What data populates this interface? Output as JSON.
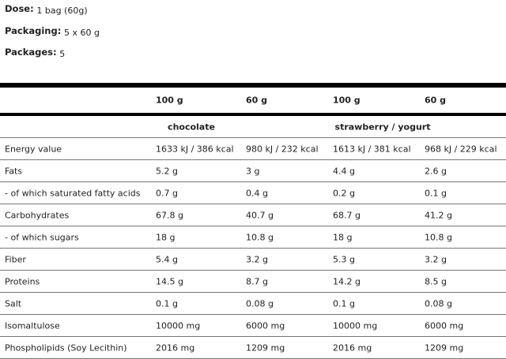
{
  "meta": [
    {
      "label": "Dose:",
      "value": "1 bag (60g)"
    },
    {
      "label": "Packaging:",
      "value": "5 x 60 g"
    },
    {
      "label": "Packages:",
      "value": "5"
    }
  ],
  "table": {
    "headers": [
      "",
      "100 g",
      "60 g",
      "100 g",
      "60 g"
    ],
    "flavors": [
      "chocolate",
      "strawberry / yogurt"
    ],
    "rows": [
      [
        "Energy value",
        "1633 kJ / 386 kcal",
        "980 kJ / 232 kcal",
        "1613 kJ / 381 kcal",
        "968 kJ / 229 kcal"
      ],
      [
        "Fats",
        "5.2 g",
        "3 g",
        "4.4 g",
        "2.6 g"
      ],
      [
        "- of which saturated fatty acids",
        "0.7 g",
        "0.4 g",
        "0.2 g",
        "0.1 g"
      ],
      [
        "Carbohydrates",
        "67.8 g",
        "40.7 g",
        "68.7 g",
        "41.2 g"
      ],
      [
        "- of which sugars",
        "18 g",
        "10.8 g",
        "18 g",
        "10.8 g"
      ],
      [
        "Fiber",
        "5.4 g",
        "3.2 g",
        "5.3 g",
        "3.2 g"
      ],
      [
        "Proteins",
        "14.5 g",
        "8.7 g",
        "14.2 g",
        "8.5 g"
      ],
      [
        "Salt",
        "0.1 g",
        "0.08 g",
        "0.1 g",
        "0.08 g"
      ],
      [
        "Isomaltulose",
        "10000 mg",
        "6000 mg",
        "10000 mg",
        "6000 mg"
      ],
      [
        "Phospholipids (Soy Lecithin)",
        "2016 mg",
        "1209 mg",
        "2016 mg",
        "1209 mg"
      ]
    ]
  }
}
